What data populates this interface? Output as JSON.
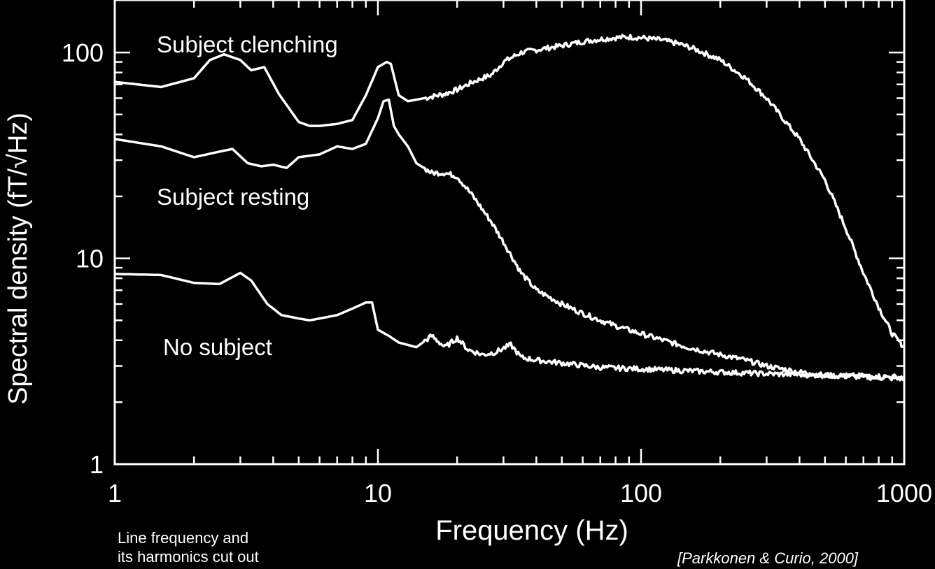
{
  "chart_data": {
    "type": "line",
    "xscale": "log",
    "yscale": "log",
    "xlim": [
      1,
      1000
    ],
    "ylim": [
      1,
      180
    ],
    "xlabel": "Frequency (Hz)",
    "ylabel": "Spectral density (fT/√Hz)",
    "xticks": [
      {
        "value": 1,
        "label": "1"
      },
      {
        "value": 10,
        "label": "10"
      },
      {
        "value": 100,
        "label": "100"
      },
      {
        "value": 1000,
        "label": "1000"
      }
    ],
    "yticks": [
      {
        "value": 1,
        "label": "1"
      },
      {
        "value": 10,
        "label": "10"
      },
      {
        "value": 100,
        "label": "100"
      }
    ],
    "series": [
      {
        "name": "Subject clenching",
        "color": "#ffffff",
        "points": [
          [
            1,
            72
          ],
          [
            1.5,
            68
          ],
          [
            2,
            75
          ],
          [
            2.3,
            92
          ],
          [
            2.6,
            98
          ],
          [
            3,
            92
          ],
          [
            3.3,
            82
          ],
          [
            3.7,
            85
          ],
          [
            4.2,
            63
          ],
          [
            5,
            46
          ],
          [
            5.5,
            44
          ],
          [
            6,
            44
          ],
          [
            7,
            45
          ],
          [
            8,
            47
          ],
          [
            9,
            62
          ],
          [
            10,
            85
          ],
          [
            10.8,
            90
          ],
          [
            11.2,
            88
          ],
          [
            12,
            62
          ],
          [
            13,
            58
          ],
          [
            15,
            60
          ],
          [
            18,
            63
          ],
          [
            20,
            66
          ],
          [
            23,
            72
          ],
          [
            27,
            78
          ],
          [
            30,
            90
          ],
          [
            35,
            100
          ],
          [
            40,
            103
          ],
          [
            50,
            108
          ],
          [
            60,
            113
          ],
          [
            70,
            116
          ],
          [
            80,
            118
          ],
          [
            90,
            119
          ],
          [
            100,
            118
          ],
          [
            120,
            115
          ],
          [
            140,
            110
          ],
          [
            160,
            104
          ],
          [
            200,
            92
          ],
          [
            250,
            75
          ],
          [
            300,
            60
          ],
          [
            400,
            38
          ],
          [
            500,
            24
          ],
          [
            600,
            14
          ],
          [
            700,
            8.5
          ],
          [
            800,
            5.8
          ],
          [
            900,
            4.3
          ],
          [
            1000,
            3.7
          ]
        ]
      },
      {
        "name": "Subject resting",
        "color": "#ffffff",
        "points": [
          [
            1,
            38
          ],
          [
            1.5,
            35
          ],
          [
            2,
            31
          ],
          [
            2.5,
            33
          ],
          [
            2.8,
            34
          ],
          [
            3.2,
            29
          ],
          [
            3.6,
            28
          ],
          [
            4,
            28.5
          ],
          [
            4.5,
            27.5
          ],
          [
            5,
            31
          ],
          [
            6,
            32
          ],
          [
            7,
            35
          ],
          [
            8,
            34
          ],
          [
            9,
            36
          ],
          [
            10,
            48
          ],
          [
            10.5,
            58
          ],
          [
            11,
            59
          ],
          [
            11.5,
            44
          ],
          [
            12,
            40
          ],
          [
            13,
            35
          ],
          [
            14,
            29
          ],
          [
            16,
            26
          ],
          [
            18,
            26
          ],
          [
            20,
            25
          ],
          [
            23,
            20
          ],
          [
            27,
            15
          ],
          [
            30,
            12
          ],
          [
            35,
            8.5
          ],
          [
            40,
            7
          ],
          [
            50,
            6
          ],
          [
            60,
            5.4
          ],
          [
            70,
            5
          ],
          [
            80,
            4.7
          ],
          [
            100,
            4.3
          ],
          [
            130,
            3.9
          ],
          [
            150,
            3.7
          ],
          [
            200,
            3.4
          ],
          [
            250,
            3.2
          ],
          [
            300,
            3
          ],
          [
            400,
            2.8
          ],
          [
            500,
            2.7
          ],
          [
            700,
            2.65
          ],
          [
            1000,
            2.6
          ]
        ]
      },
      {
        "name": "No subject",
        "color": "#ffffff",
        "points": [
          [
            1,
            8.4
          ],
          [
            1.5,
            8.3
          ],
          [
            2,
            7.6
          ],
          [
            2.5,
            7.5
          ],
          [
            3,
            8.5
          ],
          [
            3.3,
            7.8
          ],
          [
            3.8,
            6
          ],
          [
            4.3,
            5.3
          ],
          [
            5,
            5.1
          ],
          [
            5.5,
            5
          ],
          [
            6,
            5.1
          ],
          [
            7,
            5.3
          ],
          [
            8,
            5.7
          ],
          [
            9,
            6.1
          ],
          [
            9.5,
            6.1
          ],
          [
            10,
            4.5
          ],
          [
            11,
            4.2
          ],
          [
            12,
            3.9
          ],
          [
            14,
            3.7
          ],
          [
            16,
            4.2
          ],
          [
            18,
            3.7
          ],
          [
            20,
            4.1
          ],
          [
            22,
            3.6
          ],
          [
            25,
            3.4
          ],
          [
            28,
            3.5
          ],
          [
            32,
            3.8
          ],
          [
            35,
            3.3
          ],
          [
            40,
            3.2
          ],
          [
            50,
            3.1
          ],
          [
            70,
            2.95
          ],
          [
            100,
            2.9
          ],
          [
            200,
            2.8
          ],
          [
            300,
            2.75
          ],
          [
            500,
            2.7
          ],
          [
            700,
            2.68
          ],
          [
            1000,
            2.65
          ]
        ]
      }
    ],
    "annotations": [
      "Subject clenching",
      "Subject resting",
      "No subject"
    ]
  },
  "footer": {
    "note_line1": "Line frequency and",
    "note_line2": "its harmonics cut out",
    "citation": "[Parkkonen & Curio, 2000]"
  }
}
